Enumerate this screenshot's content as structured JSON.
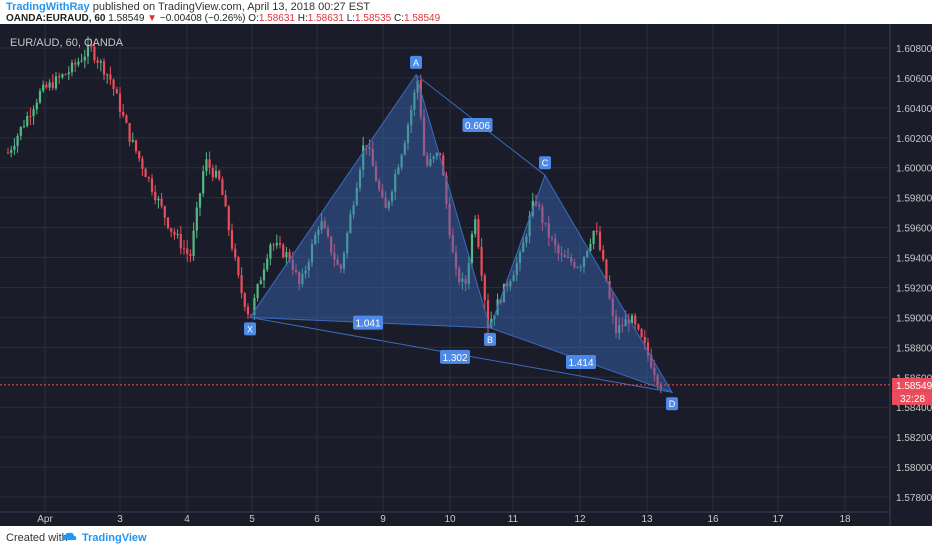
{
  "header": {
    "author": "TradingWithRay",
    "published_text": "published on TradingView.com, April 13, 2018 00:27 EST",
    "symbol": "OANDA:EURAUD, 60",
    "last": "1.58549",
    "arrow": "▼",
    "change": "−0.00408 (−0.26%)",
    "o_label": "O:",
    "o": "1.58631",
    "h_label": "H:",
    "h": "1.58631",
    "l_label": "L:",
    "l": "1.58535",
    "c_label": "C:",
    "c": "1.58549"
  },
  "footer": {
    "created": "Created with",
    "brand": "TradingView"
  },
  "chart_data": {
    "type": "candlestick",
    "title": "EUR/AUD, 60, OANDA",
    "ylim": [
      1.577,
      1.6096
    ],
    "yticks": [
      "1.60800",
      "1.60600",
      "1.60400",
      "1.60200",
      "1.60000",
      "1.59800",
      "1.59600",
      "1.59400",
      "1.59200",
      "1.59000",
      "1.58800",
      "1.58600",
      "1.58400",
      "1.58200",
      "1.58000",
      "1.57800"
    ],
    "xticks": [
      "Apr",
      "3",
      "4",
      "5",
      "6",
      "9",
      "10",
      "11",
      "12",
      "13",
      "16",
      "17",
      "18"
    ],
    "price_label": "1.58549",
    "countdown": "32:28",
    "pattern": {
      "points": [
        {
          "label": "X",
          "value": 1.59
        },
        {
          "label": "A",
          "value": 1.6062
        },
        {
          "label": "B",
          "value": 1.5893
        },
        {
          "label": "C",
          "value": 1.5995
        },
        {
          "label": "D",
          "value": 1.585
        }
      ],
      "ratios": [
        "0.606",
        "1.041",
        "1.302",
        "1.414"
      ]
    },
    "grid": true,
    "colors": {
      "bg": "#1a1d29",
      "up": "#53b987",
      "down": "#eb4d5c",
      "pattern": "#3a6bbf",
      "grid": "#2a2e39",
      "axis_text": "#c7c8ca",
      "label": "#4d8ae8"
    }
  }
}
